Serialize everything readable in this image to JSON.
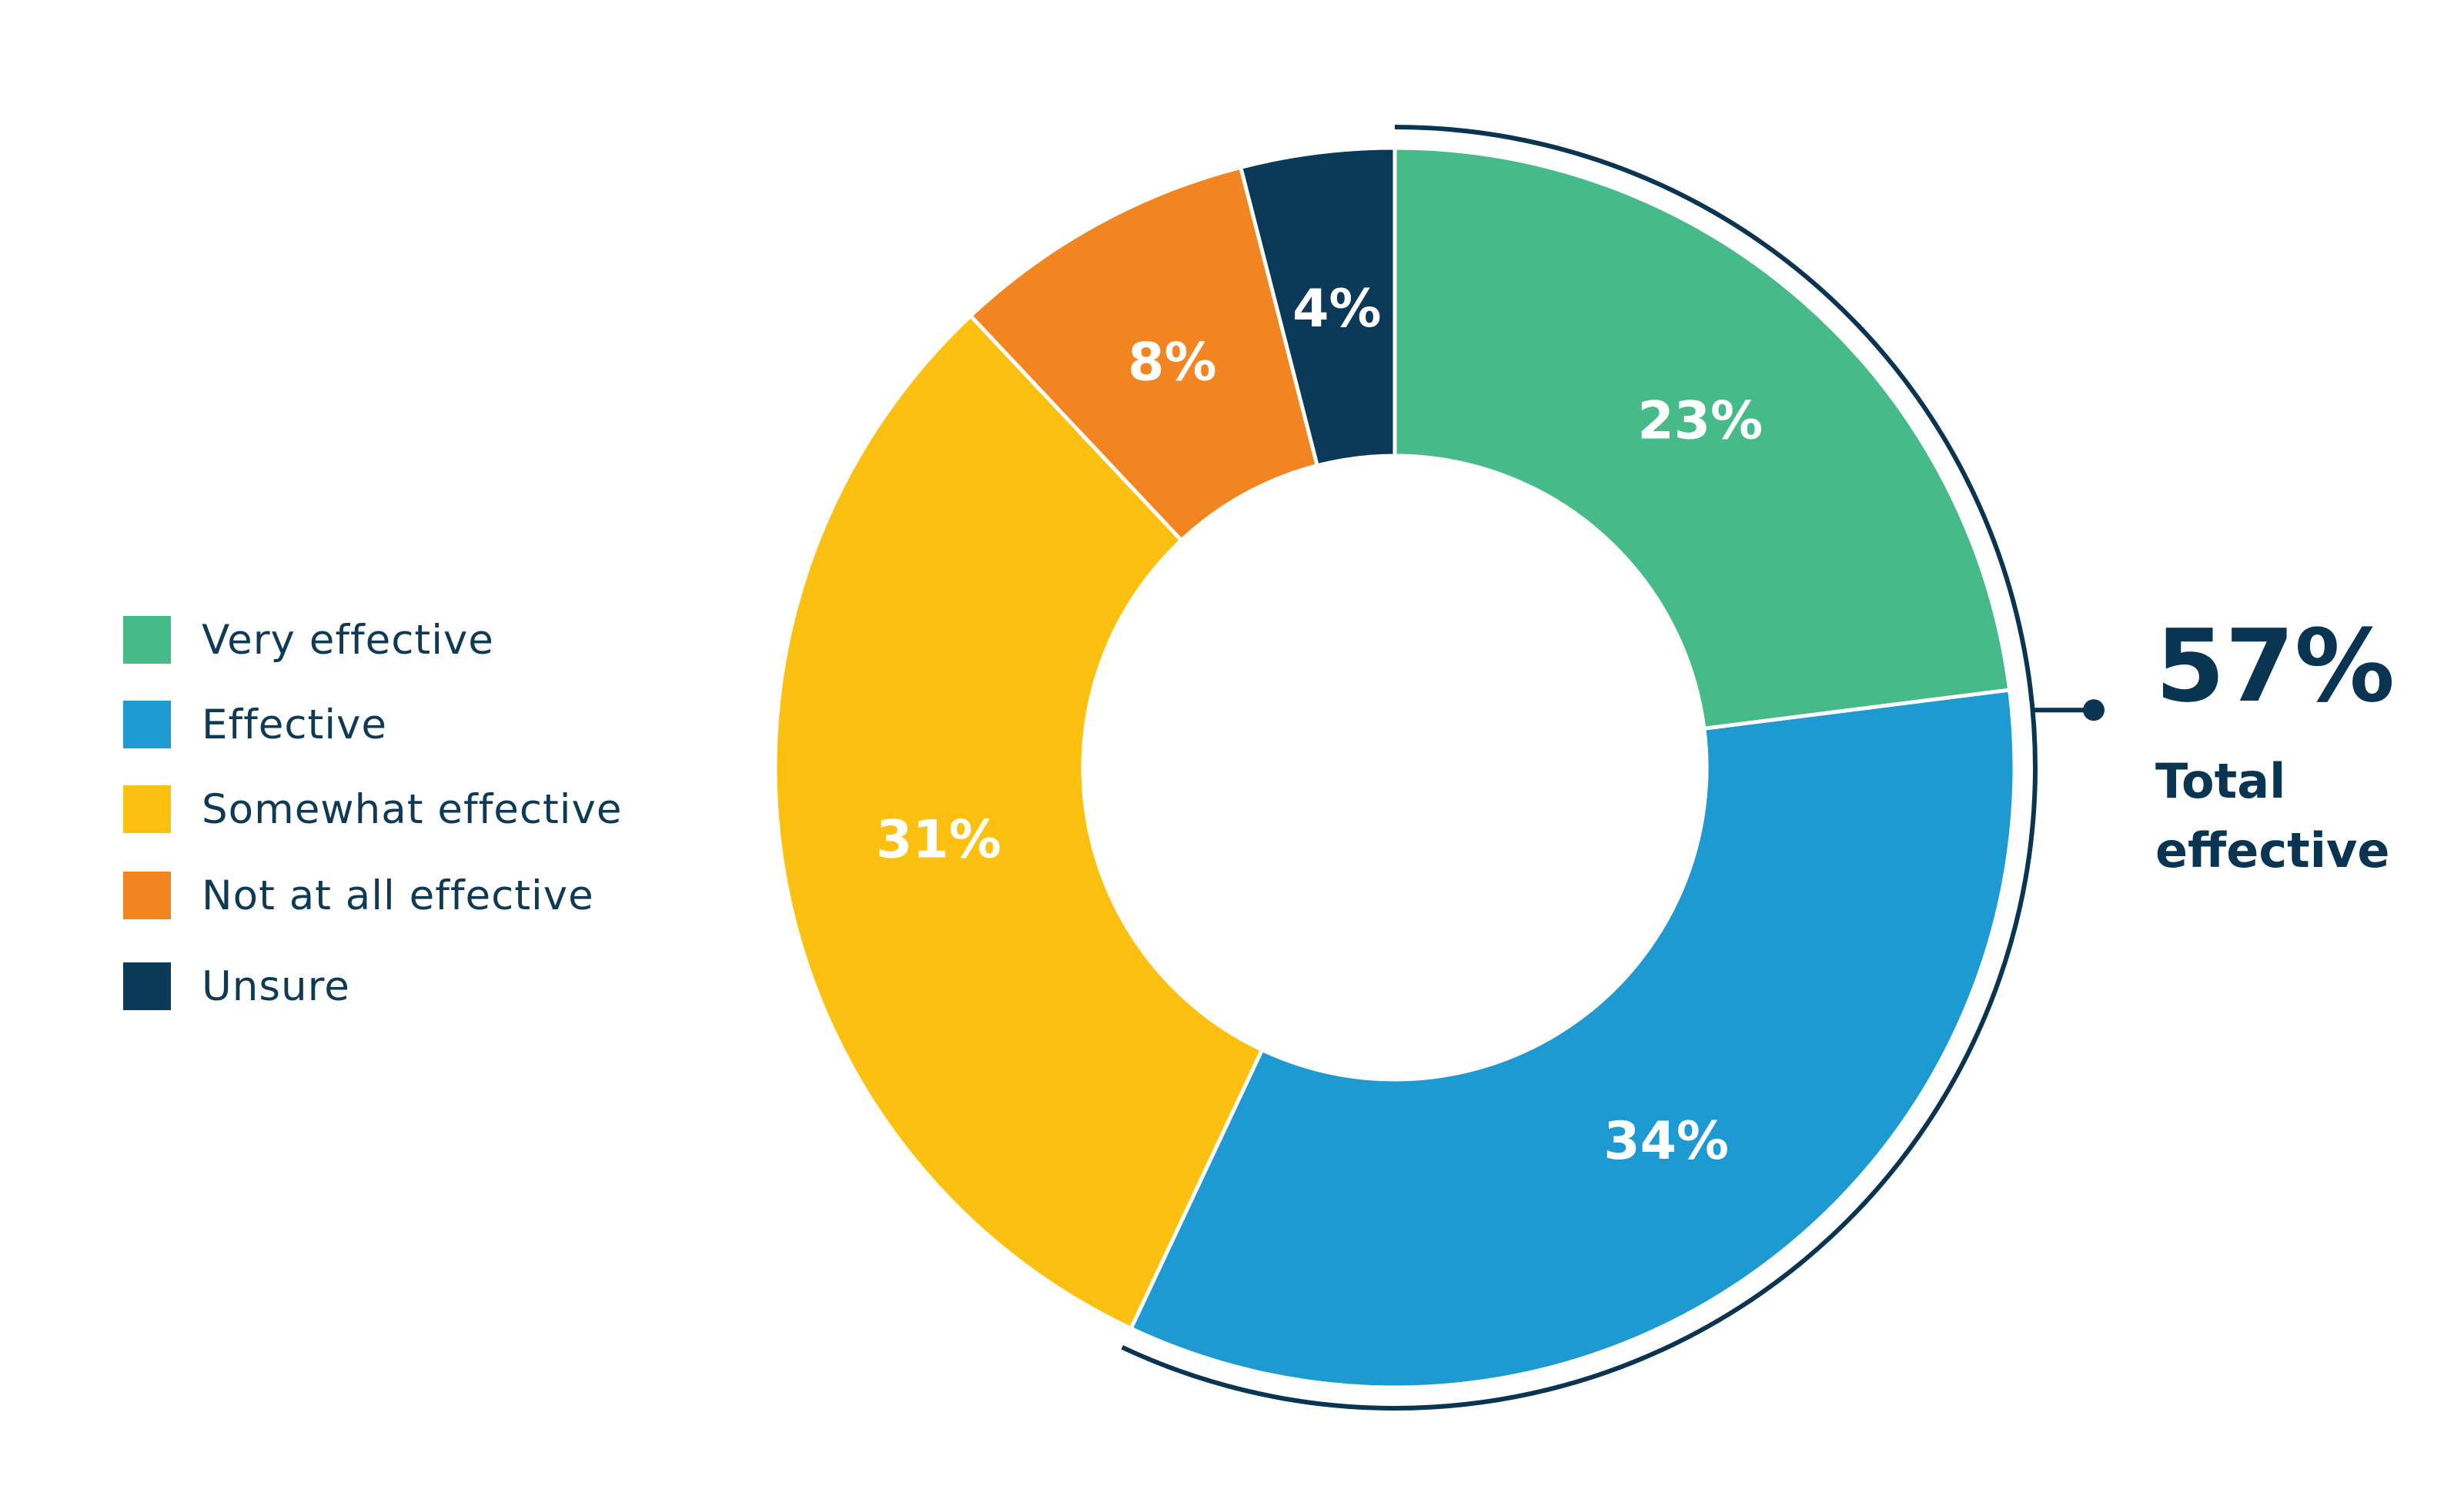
{
  "chart_data": {
    "type": "pie",
    "variant": "donut",
    "legend_position": "left",
    "categories": [
      "Very effective",
      "Effective",
      "Somewhat effective",
      "Not at all effective",
      "Unsure"
    ],
    "values": [
      23,
      34,
      31,
      8,
      4
    ],
    "value_labels": [
      "23%",
      "34%",
      "31%",
      "8%",
      "4%"
    ],
    "colors": [
      "#47ba8a",
      "#1e9ad3",
      "#fcc010",
      "#f28520",
      "#0a3a57"
    ],
    "annotation": {
      "value": "57%",
      "label": "Total effective",
      "covers": [
        "Very effective",
        "Effective"
      ]
    }
  },
  "legend": {
    "items": [
      {
        "label": "Very effective",
        "color": "#47ba8a"
      },
      {
        "label": "Effective",
        "color": "#1e9ad3"
      },
      {
        "label": "Somewhat effective",
        "color": "#fcc010"
      },
      {
        "label": "Not at all effective",
        "color": "#f28520"
      },
      {
        "label": "Unsure",
        "color": "#0a3a57"
      }
    ]
  }
}
